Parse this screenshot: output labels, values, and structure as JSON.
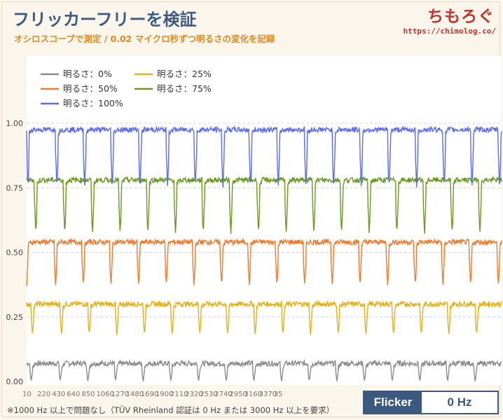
{
  "header": {
    "title": "フリッカーフリーを検証",
    "subtitle": "オシロスコープで測定 / 0.02 マイクロ秒ずつ明るさの変化を記録",
    "logo": "ちもろぐ",
    "logo_url": "https://chimolog.co/"
  },
  "footer": {
    "note": "※1000 Hz 以上で問題なし（TÜV Rheinland 認証は 0 Hz または 3000 Hz 以上を要求）",
    "flicker_label": "Flicker",
    "flicker_value": "0 Hz"
  },
  "chart_data": {
    "type": "line",
    "title": "",
    "xlabel": "",
    "ylabel": "",
    "ylim": [
      0,
      1.0
    ],
    "y_ticks": [
      "0.00",
      "0.25",
      "0.50",
      "0.75",
      "1.00"
    ],
    "x_ticks": [
      "10",
      "220",
      "430",
      "640",
      "850",
      "1060",
      "1270",
      "1480",
      "1690",
      "1900",
      "2110",
      "2320",
      "2530",
      "2740",
      "2950",
      "3160",
      "3370",
      "35"
    ],
    "x_range": [
      10,
      3615
    ],
    "grid": "horizontal dashed",
    "legend_position": "top-left",
    "dip_x_positions": [
      10,
      230,
      440,
      650,
      860,
      1070,
      1280,
      1490,
      1700,
      1910,
      2120,
      2330,
      2540,
      2750,
      2960,
      3170,
      3380,
      3590
    ],
    "series": [
      {
        "name": "明るさ：0%",
        "color": "#8c8c8c",
        "base": 0.07,
        "dip_min": 0.0,
        "offset": 35
      },
      {
        "name": "明るさ：25%",
        "color": "#e3b21a",
        "base": 0.3,
        "dip_min": 0.18,
        "offset": 45
      },
      {
        "name": "明るさ：50%",
        "color": "#ef7c2e",
        "base": 0.54,
        "dip_min": 0.37,
        "offset": 0
      },
      {
        "name": "明るさ：75%",
        "color": "#6a9a1f",
        "base": 0.78,
        "dip_min": 0.57,
        "offset": 70
      },
      {
        "name": "明るさ：100%",
        "color": "#5b6cf5",
        "base": 0.975,
        "dip_min": 0.75,
        "offset": 10
      }
    ]
  }
}
